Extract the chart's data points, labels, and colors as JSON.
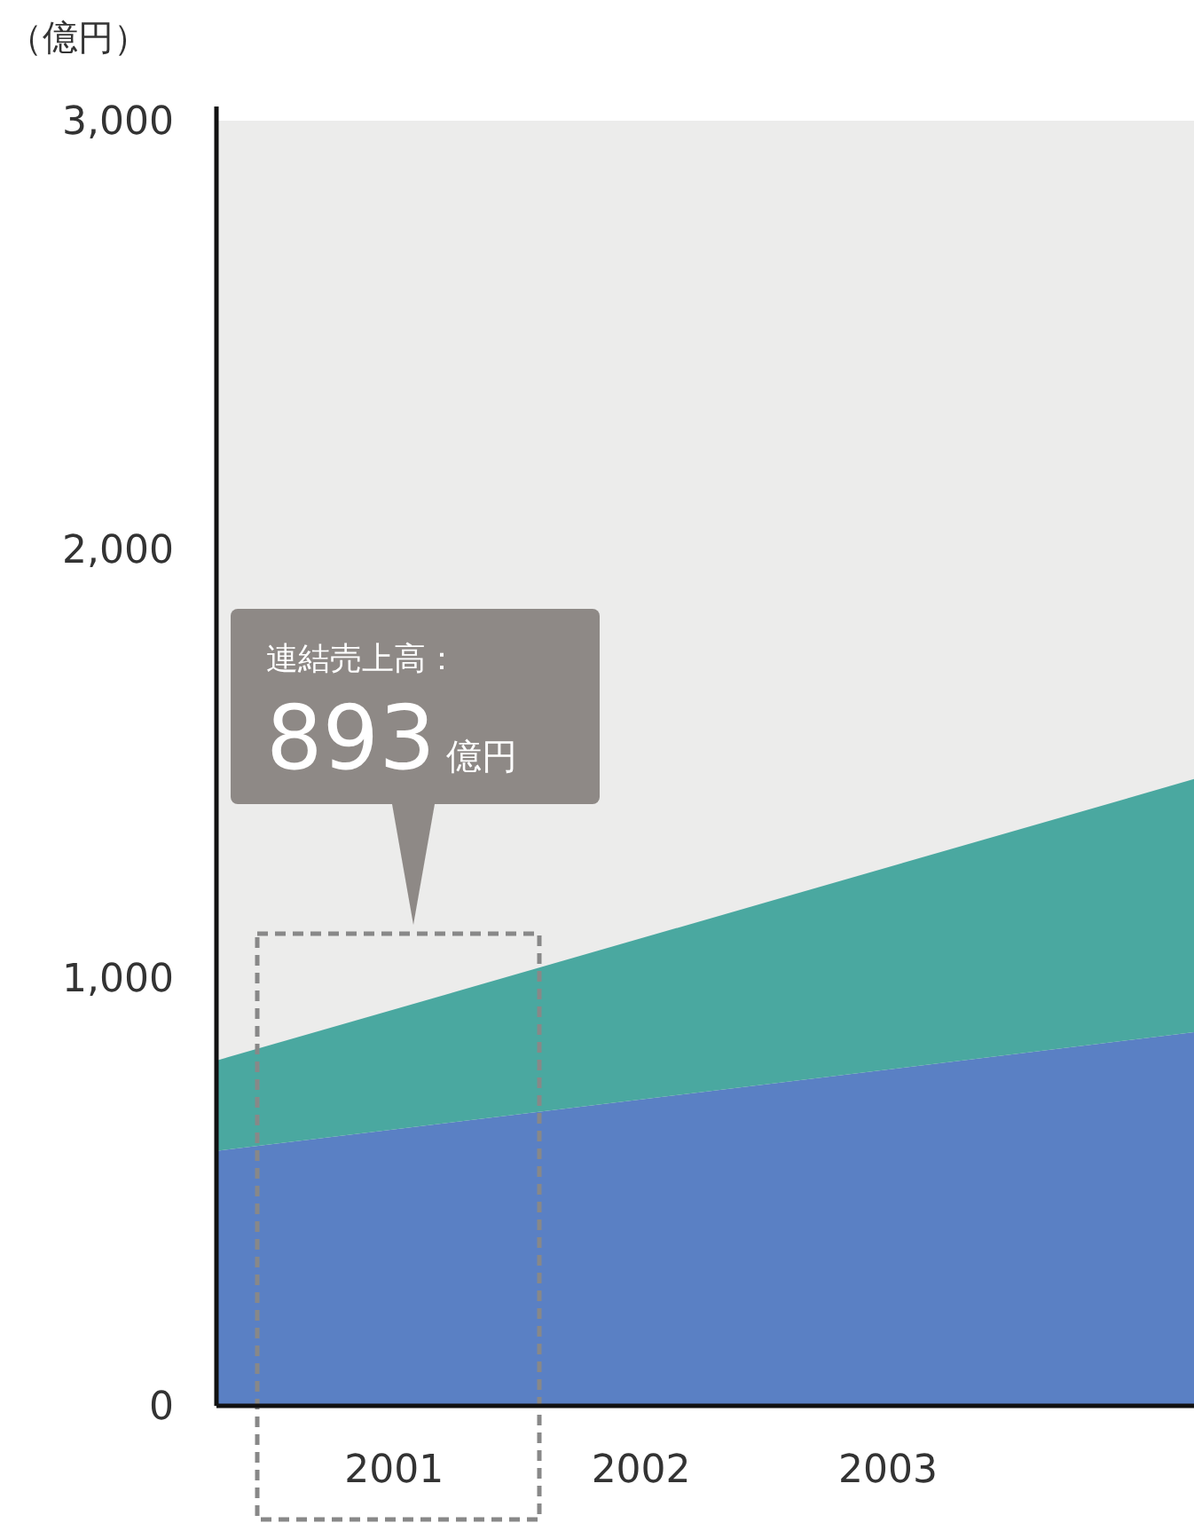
{
  "chart_data": {
    "type": "area",
    "stacked": true,
    "ylabel": "（億円）",
    "x": [
      2000.28,
      2004.24
    ],
    "xlim": [
      2000.28,
      2004.24
    ],
    "xticks": [
      2001,
      2002,
      2003
    ],
    "ylim": [
      0,
      3000
    ],
    "yticks": [
      {
        "value": 0,
        "label": "0"
      },
      {
        "value": 1000,
        "label": "1,000"
      },
      {
        "value": 2000,
        "label": "2,000"
      },
      {
        "value": 3000,
        "label": "3,000"
      }
    ],
    "series": [
      {
        "color": "#5a80c4",
        "values": [
          595,
          872
        ]
      },
      {
        "color": "#4aa8a0",
        "values": [
          211,
          591
        ]
      }
    ],
    "annotations": [
      "連結売上高：\n893億円"
    ]
  }
}
